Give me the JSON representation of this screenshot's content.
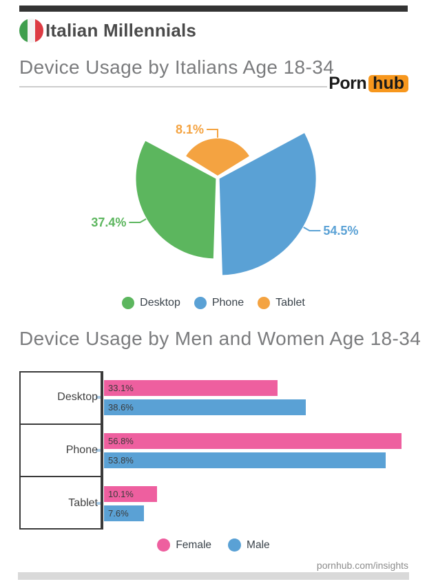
{
  "page": {
    "top_bar_color": "#333333",
    "footer_bar_color": "#d9d9d9",
    "background": "#ffffff"
  },
  "header": {
    "title": "Italian Millennials",
    "flag_icon": "italy-flag",
    "flag_colors": [
      "#3f9e4d",
      "#f4f4f4",
      "#dd3b43"
    ]
  },
  "logo": {
    "porn": "Porn",
    "hub": "hub",
    "badge_color": "#f7971d"
  },
  "chart_data": [
    {
      "type": "pie",
      "variant": "rose-equal-angle-exploded",
      "title": "Device Usage by Italians Age 18-34",
      "note": "equal 120-degree slices, radius proportional to sqrt(value), slight explode, callout labels",
      "slices": [
        {
          "label": "Desktop",
          "value": 37.4,
          "display": "37.4%",
          "color": "#5cb65e"
        },
        {
          "label": "Phone",
          "value": 54.5,
          "display": "54.5%",
          "color": "#5aa1d5"
        },
        {
          "label": "Tablet",
          "value": 8.1,
          "display": "8.1%",
          "color": "#f4a341"
        }
      ],
      "legend_position": "bottom"
    },
    {
      "type": "bar",
      "orientation": "horizontal",
      "title": "Device Usage by Men and Women Age 18-34",
      "categories": [
        "Desktop",
        "Phone",
        "Tablet"
      ],
      "series": [
        {
          "name": "Female",
          "color": "#ee5f9f",
          "values": [
            33.1,
            56.8,
            10.1
          ],
          "labels": [
            "33.1%",
            "56.8%",
            "10.1%"
          ]
        },
        {
          "name": "Male",
          "color": "#5aa1d5",
          "values": [
            38.6,
            53.8,
            7.6
          ],
          "labels": [
            "38.6%",
            "53.8%",
            "7.6%"
          ]
        }
      ],
      "xlim": [
        0,
        60
      ],
      "grid": false,
      "value_labels": "inside-left",
      "legend_position": "bottom"
    }
  ],
  "footer": {
    "link": "pornhub.com/insights"
  }
}
